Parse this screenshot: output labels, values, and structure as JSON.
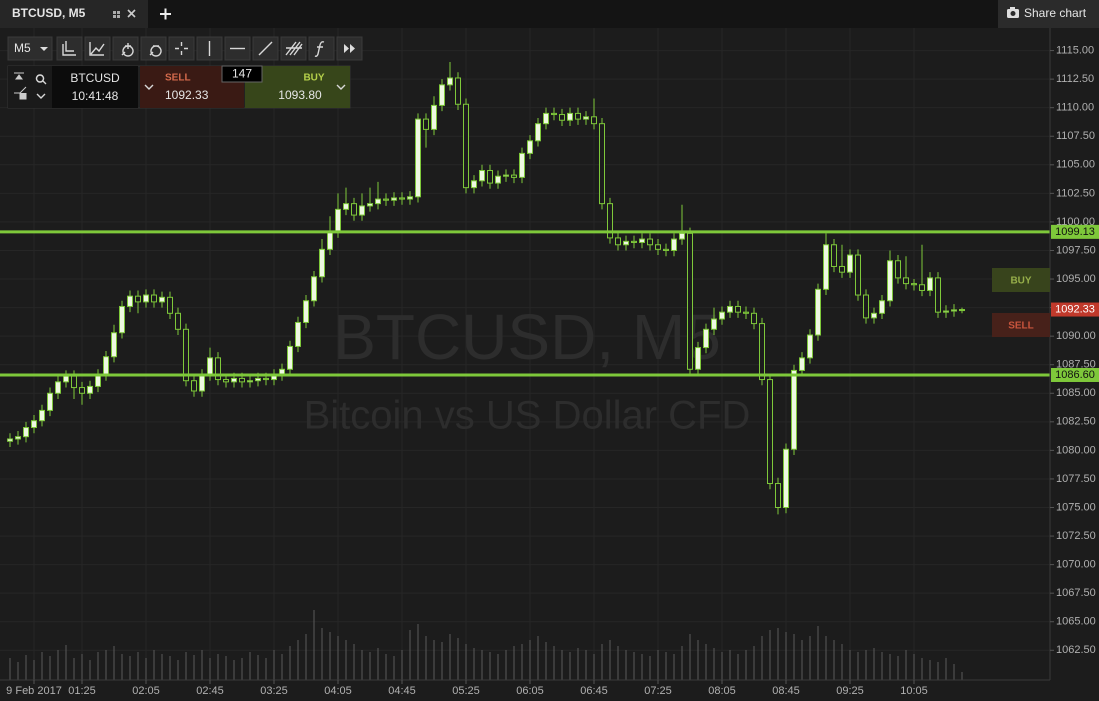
{
  "ui": {
    "tab": "BTCUSD, M5",
    "share": "Share chart",
    "timeframe": "M5",
    "panel": {
      "symbol": "BTCUSD",
      "time": "10:41:48",
      "sell_label": "SELL",
      "sell_price": "1092.33",
      "spread": "147",
      "buy_label": "BUY",
      "buy_price": "1093.80"
    }
  },
  "chart_data": {
    "type": "candlestick",
    "title": "BTCUSD, M5",
    "subtitle": "Bitcoin vs US Dollar CFD",
    "open": [
      1080.8,
      1081.0,
      1081.2,
      1082.0,
      1082.6,
      1083.5,
      1085.0,
      1086.0,
      1086.5,
      1085.5,
      1085.0,
      1085.6,
      1086.6,
      1088.2,
      1090.3,
      1092.6,
      1093.5,
      1093.0,
      1093.6,
      1093.0,
      1093.4,
      1092.0,
      1090.6,
      1086.1,
      1085.2,
      1086.6,
      1088.1,
      1086.2,
      1086.0,
      1086.3,
      1086.0,
      1086.1,
      1086.3,
      1086.2,
      1086.6,
      1087.1,
      1089.1,
      1091.2,
      1093.1,
      1095.2,
      1097.6,
      1099.1,
      1101.1,
      1101.6,
      1100.6,
      1101.4,
      1101.6,
      1102.0,
      1101.9,
      1102.1,
      1102.0,
      1102.2,
      1109.0,
      1108.1,
      1110.2,
      1112.0,
      1112.6,
      1110.3,
      1103.0,
      1103.6,
      1104.5,
      1103.4,
      1104.0,
      1104.1,
      1103.9,
      1106.0,
      1107.1,
      1108.6,
      1109.5,
      1109.4,
      1108.9,
      1109.5,
      1109.0,
      1109.2,
      1108.6,
      1101.6,
      1098.6,
      1098.0,
      1098.3,
      1098.2,
      1098.5,
      1098.0,
      1097.6,
      1097.5,
      1098.5,
      1099.0,
      1087.1,
      1089.0,
      1090.6,
      1091.5,
      1092.1,
      1092.6,
      1092.1,
      1092.0,
      1091.1,
      1086.2,
      1077.1,
      1075.0,
      1080.1,
      1087.0,
      1088.1,
      1090.1,
      1094.1,
      1098.0,
      1096.1,
      1095.6,
      1097.1,
      1093.6,
      1091.6,
      1092.0,
      1093.1,
      1096.6,
      1095.1,
      1094.6,
      1094.5,
      1094.0,
      1095.1,
      1092.1,
      1092.2,
      1092.3
    ],
    "high": [
      1081.5,
      1081.7,
      1082.5,
      1083.1,
      1084.0,
      1085.5,
      1086.5,
      1087.0,
      1087.0,
      1086.0,
      1086.1,
      1087.1,
      1088.7,
      1091.0,
      1093.1,
      1094.0,
      1094.0,
      1094.1,
      1094.1,
      1093.9,
      1093.9,
      1092.5,
      1091.1,
      1086.6,
      1087.1,
      1089.0,
      1088.6,
      1086.7,
      1086.8,
      1086.8,
      1086.6,
      1086.8,
      1086.8,
      1087.1,
      1087.6,
      1089.6,
      1091.7,
      1093.6,
      1095.7,
      1098.5,
      1100.5,
      1102.5,
      1103.0,
      1102.1,
      1102.5,
      1103.0,
      1103.5,
      1102.5,
      1102.6,
      1102.6,
      1102.7,
      1109.5,
      1109.5,
      1111.0,
      1112.5,
      1114.0,
      1113.1,
      1110.8,
      1104.1,
      1105.0,
      1105.0,
      1104.5,
      1104.6,
      1104.6,
      1106.5,
      1107.6,
      1109.1,
      1110.0,
      1110.0,
      1109.9,
      1110.0,
      1110.0,
      1109.7,
      1110.8,
      1109.1,
      1102.1,
      1099.1,
      1098.8,
      1098.8,
      1099.0,
      1099.0,
      1098.5,
      1098.1,
      1099.0,
      1101.5,
      1099.5,
      1089.5,
      1091.1,
      1092.5,
      1092.6,
      1093.1,
      1093.1,
      1092.6,
      1092.5,
      1091.6,
      1086.7,
      1077.6,
      1080.6,
      1087.5,
      1088.6,
      1090.6,
      1094.6,
      1099.0,
      1098.5,
      1098.0,
      1097.6,
      1097.6,
      1094.1,
      1092.5,
      1093.6,
      1097.5,
      1097.1,
      1097.0,
      1095.0,
      1098.0,
      1095.6,
      1095.6,
      1092.7,
      1092.8,
      1092.5
    ],
    "low": [
      1080.3,
      1080.5,
      1080.7,
      1081.5,
      1082.1,
      1083.0,
      1084.5,
      1085.5,
      1084.5,
      1084.0,
      1084.5,
      1085.1,
      1086.1,
      1087.7,
      1089.8,
      1092.1,
      1092.0,
      1092.5,
      1092.5,
      1092.5,
      1091.5,
      1090.1,
      1085.6,
      1084.7,
      1084.7,
      1086.1,
      1085.7,
      1085.5,
      1085.5,
      1085.5,
      1085.5,
      1085.6,
      1085.7,
      1085.7,
      1086.1,
      1086.6,
      1088.6,
      1090.7,
      1092.6,
      1094.7,
      1097.1,
      1098.6,
      1100.6,
      1100.1,
      1100.1,
      1100.9,
      1101.1,
      1101.4,
      1101.4,
      1101.5,
      1101.5,
      1101.7,
      1106.5,
      1107.6,
      1109.7,
      1111.5,
      1109.8,
      1102.5,
      1102.5,
      1103.1,
      1102.9,
      1102.9,
      1103.5,
      1103.4,
      1103.4,
      1105.5,
      1106.6,
      1108.1,
      1108.9,
      1108.4,
      1108.4,
      1108.5,
      1108.5,
      1108.1,
      1101.1,
      1098.1,
      1097.5,
      1097.5,
      1097.7,
      1097.7,
      1097.5,
      1097.1,
      1097.0,
      1097.0,
      1098.0,
      1086.6,
      1086.6,
      1088.5,
      1090.1,
      1091.0,
      1091.6,
      1091.6,
      1091.5,
      1090.6,
      1085.7,
      1076.6,
      1074.4,
      1074.5,
      1079.6,
      1086.5,
      1087.6,
      1089.6,
      1093.6,
      1095.6,
      1095.1,
      1095.1,
      1093.1,
      1091.1,
      1091.1,
      1091.5,
      1092.6,
      1094.6,
      1094.1,
      1094.0,
      1093.5,
      1093.5,
      1091.6,
      1091.6,
      1091.7,
      1092.0
    ],
    "close": [
      1081.0,
      1081.2,
      1082.0,
      1082.6,
      1083.5,
      1085.0,
      1086.0,
      1086.5,
      1085.5,
      1085.0,
      1085.6,
      1086.6,
      1088.2,
      1090.3,
      1092.6,
      1093.5,
      1093.0,
      1093.6,
      1093.0,
      1093.4,
      1092.0,
      1090.6,
      1086.1,
      1085.2,
      1086.6,
      1088.1,
      1086.2,
      1086.0,
      1086.3,
      1086.0,
      1086.1,
      1086.3,
      1086.2,
      1086.6,
      1087.1,
      1089.1,
      1091.2,
      1093.1,
      1095.2,
      1097.6,
      1099.1,
      1101.1,
      1101.6,
      1100.6,
      1101.4,
      1101.6,
      1102.0,
      1101.9,
      1102.1,
      1102.0,
      1102.2,
      1109.0,
      1108.1,
      1110.2,
      1112.0,
      1112.6,
      1110.3,
      1103.0,
      1103.6,
      1104.5,
      1103.4,
      1104.0,
      1104.1,
      1103.9,
      1106.0,
      1107.1,
      1108.6,
      1109.5,
      1109.4,
      1108.9,
      1109.5,
      1109.0,
      1109.2,
      1108.6,
      1101.6,
      1098.6,
      1098.0,
      1098.3,
      1098.2,
      1098.5,
      1098.0,
      1097.6,
      1097.5,
      1098.5,
      1099.0,
      1087.1,
      1089.0,
      1090.6,
      1091.5,
      1092.1,
      1092.6,
      1092.1,
      1092.0,
      1091.1,
      1086.2,
      1077.1,
      1075.0,
      1080.1,
      1087.0,
      1088.1,
      1090.1,
      1094.1,
      1098.0,
      1096.1,
      1095.6,
      1097.1,
      1093.6,
      1091.6,
      1092.0,
      1093.1,
      1096.6,
      1095.1,
      1094.6,
      1094.5,
      1094.0,
      1095.1,
      1092.1,
      1092.2,
      1092.3,
      1092.33
    ],
    "volume": [
      22,
      18,
      25,
      20,
      28,
      24,
      30,
      35,
      22,
      26,
      20,
      28,
      30,
      34,
      26,
      24,
      28,
      22,
      30,
      26,
      24,
      20,
      28,
      25,
      30,
      22,
      26,
      24,
      20,
      22,
      28,
      25,
      22,
      30,
      26,
      34,
      40,
      46,
      70,
      52,
      48,
      44,
      40,
      36,
      30,
      28,
      32,
      26,
      24,
      30,
      50,
      56,
      44,
      40,
      38,
      46,
      42,
      36,
      32,
      30,
      28,
      26,
      30,
      34,
      36,
      40,
      44,
      38,
      34,
      30,
      28,
      32,
      30,
      26,
      36,
      40,
      34,
      30,
      28,
      26,
      24,
      30,
      28,
      26,
      34,
      46,
      40,
      36,
      32,
      28,
      30,
      26,
      30,
      34,
      44,
      50,
      52,
      48,
      46,
      40,
      44,
      54,
      44,
      40,
      36,
      30,
      28,
      30,
      32,
      28,
      26,
      24,
      30,
      26,
      22,
      20,
      18,
      22,
      16,
      8
    ],
    "up_color": "#eef8e2",
    "down_color": "#1c1c1c",
    "wick_color": "#7ec83a",
    "volume_color": "#5a5a5a",
    "hline_color": "#7ec83a",
    "last_price_color": "#c0392b",
    "xlim": [
      -1.25,
      130
    ],
    "xticks": [
      {
        "value": 3,
        "label": "9 Feb 2017"
      },
      {
        "value": 9,
        "label": "01:25"
      },
      {
        "value": 17,
        "label": "02:05"
      },
      {
        "value": 25,
        "label": "02:45"
      },
      {
        "value": 33,
        "label": "03:25"
      },
      {
        "value": 41,
        "label": "04:05"
      },
      {
        "value": 49,
        "label": "04:45"
      },
      {
        "value": 57,
        "label": "05:25"
      },
      {
        "value": 65,
        "label": "06:05"
      },
      {
        "value": 73,
        "label": "06:45"
      },
      {
        "value": 81,
        "label": "07:25"
      },
      {
        "value": 89,
        "label": "08:05"
      },
      {
        "value": 97,
        "label": "08:45"
      },
      {
        "value": 105,
        "label": "09:25"
      },
      {
        "value": 113,
        "label": "10:05"
      }
    ],
    "ylim": [
      1059.9,
      1116.1
    ],
    "yticks": [
      {
        "value": 1062.5,
        "label": "1062.50"
      },
      {
        "value": 1065,
        "label": "1065.00"
      },
      {
        "value": 1067.5,
        "label": "1067.50"
      },
      {
        "value": 1070,
        "label": "1070.00"
      },
      {
        "value": 1072.5,
        "label": "1072.50"
      },
      {
        "value": 1075,
        "label": "1075.00"
      },
      {
        "value": 1077.5,
        "label": "1077.50"
      },
      {
        "value": 1080,
        "label": "1080.00"
      },
      {
        "value": 1082.5,
        "label": "1082.50"
      },
      {
        "value": 1085,
        "label": "1085.00"
      },
      {
        "value": 1087.5,
        "label": "1087.50"
      },
      {
        "value": 1090,
        "label": "1090.00"
      },
      {
        "value": 1092.5,
        "label": "1092.50"
      },
      {
        "value": 1095,
        "label": "1095.00"
      },
      {
        "value": 1097.5,
        "label": "1097.50"
      },
      {
        "value": 1100,
        "label": "1100.00"
      },
      {
        "value": 1102.5,
        "label": "1102.50"
      },
      {
        "value": 1105,
        "label": "1105.00"
      },
      {
        "value": 1107.5,
        "label": "1107.50"
      },
      {
        "value": 1110,
        "label": "1110.00"
      },
      {
        "value": 1112.5,
        "label": "1112.50"
      },
      {
        "value": 1115,
        "label": "1115.00"
      }
    ],
    "grid": true,
    "hlines": [
      1099.13,
      {
        "value": 1086.6,
        "label": "1086.60"
      }
    ],
    "last_price": 1092.33
  }
}
